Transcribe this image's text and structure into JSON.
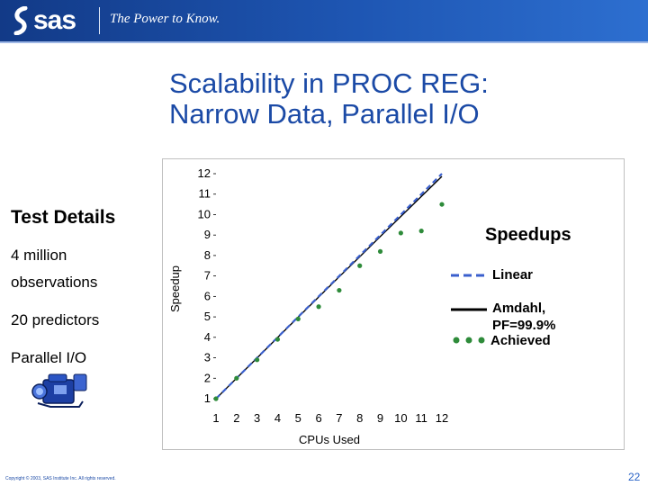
{
  "header": {
    "logo_text": "sas",
    "tagline": "The Power to Know."
  },
  "slide": {
    "title_line1": "Scalability in PROC REG:",
    "title_line2": "Narrow Data, Parallel I/O",
    "test_details_heading": "Test Details",
    "details": [
      "4 million",
      "observations",
      "20 predictors",
      "Parallel I/O"
    ],
    "camera_icon": "video-camera-icon",
    "copyright": "Copyright © 2003, SAS Institute Inc. All rights reserved.",
    "page_number": "22"
  },
  "colors": {
    "banner": "#1e56b3",
    "title": "#1b4aa6",
    "linear": "#3a5fcd",
    "amdahl": "#000000",
    "achieved": "#2e8b3a"
  },
  "chart_data": {
    "type": "line",
    "xlabel": "CPUs Used",
    "ylabel": "Speedup",
    "x_ticks": [
      1,
      2,
      3,
      4,
      5,
      6,
      7,
      8,
      9,
      10,
      11,
      12
    ],
    "y_ticks": [
      1,
      2,
      3,
      4,
      5,
      6,
      7,
      8,
      9,
      10,
      11,
      12
    ],
    "xlim": [
      1,
      12
    ],
    "ylim": [
      1,
      12
    ],
    "legend": {
      "title": "Speedups",
      "position": "right"
    },
    "series": [
      {
        "name": "Linear",
        "style": "dashed",
        "x": [
          1,
          2,
          3,
          4,
          5,
          6,
          7,
          8,
          9,
          10,
          11,
          12
        ],
        "y": [
          1,
          2,
          3,
          4,
          5,
          6,
          7,
          8,
          9,
          10,
          11,
          12
        ]
      },
      {
        "name": "Amdahl, PF=99.9%",
        "style": "solid",
        "x": [
          1,
          2,
          3,
          4,
          5,
          6,
          7,
          8,
          9,
          10,
          11,
          12
        ],
        "y": [
          1,
          2.0,
          2.99,
          3.99,
          4.98,
          5.97,
          6.96,
          7.94,
          8.93,
          9.91,
          10.89,
          11.87
        ]
      },
      {
        "name": "Achieved",
        "style": "markers",
        "x": [
          1,
          2,
          3,
          4,
          5,
          6,
          7,
          8,
          9,
          10,
          11,
          12
        ],
        "y": [
          1.0,
          2.0,
          2.9,
          3.9,
          4.9,
          5.5,
          6.3,
          7.5,
          8.2,
          9.1,
          9.2,
          10.5
        ]
      }
    ]
  }
}
